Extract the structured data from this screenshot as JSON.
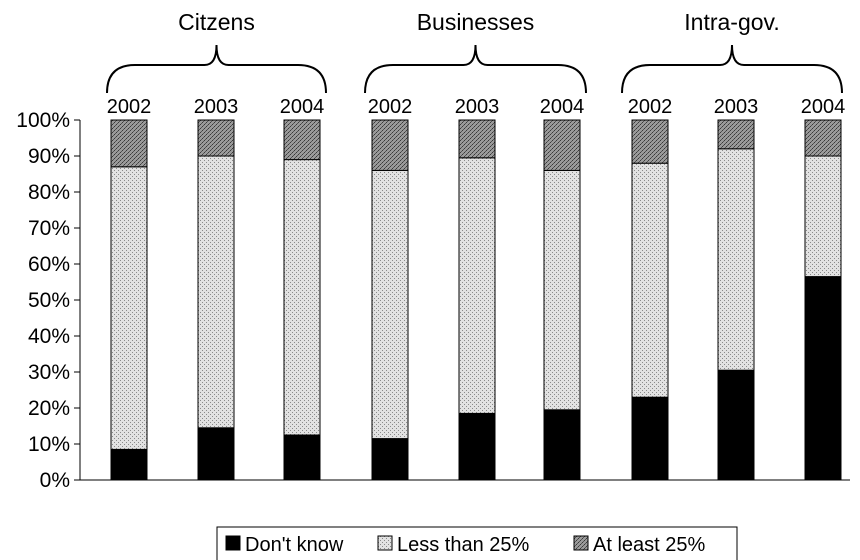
{
  "chart_data": {
    "type": "bar",
    "stacked": true,
    "percent": true,
    "groups": [
      "Citzens",
      "Businesses",
      "Intra-gov."
    ],
    "categories": [
      "2002",
      "2003",
      "2004",
      "2002",
      "2003",
      "2004",
      "2002",
      "2003",
      "2004"
    ],
    "series": [
      {
        "name": "Don't know",
        "values": [
          8.5,
          14.5,
          12.5,
          11.5,
          18.5,
          19.5,
          23,
          30.5,
          56.5
        ],
        "pattern": "solid-black"
      },
      {
        "name": "Less than 25%",
        "values": [
          78.5,
          75.5,
          76.5,
          74.5,
          71,
          66.5,
          65,
          61.5,
          33.5
        ],
        "pattern": "light-dotted"
      },
      {
        "name": "At least 25%",
        "values": [
          13,
          10,
          11,
          14,
          10.5,
          14,
          12,
          8,
          10
        ],
        "pattern": "dark-crosshatch"
      }
    ],
    "ylim": [
      0,
      100
    ],
    "yticks": [
      "0%",
      "10%",
      "20%",
      "30%",
      "40%",
      "50%",
      "60%",
      "70%",
      "80%",
      "90%",
      "100%"
    ],
    "legend_position": "bottom",
    "grid": false,
    "colors": {
      "dont_know": "#000000",
      "less_than_25": "#d0d0d0",
      "at_least_25": "#7a7a7a"
    }
  }
}
